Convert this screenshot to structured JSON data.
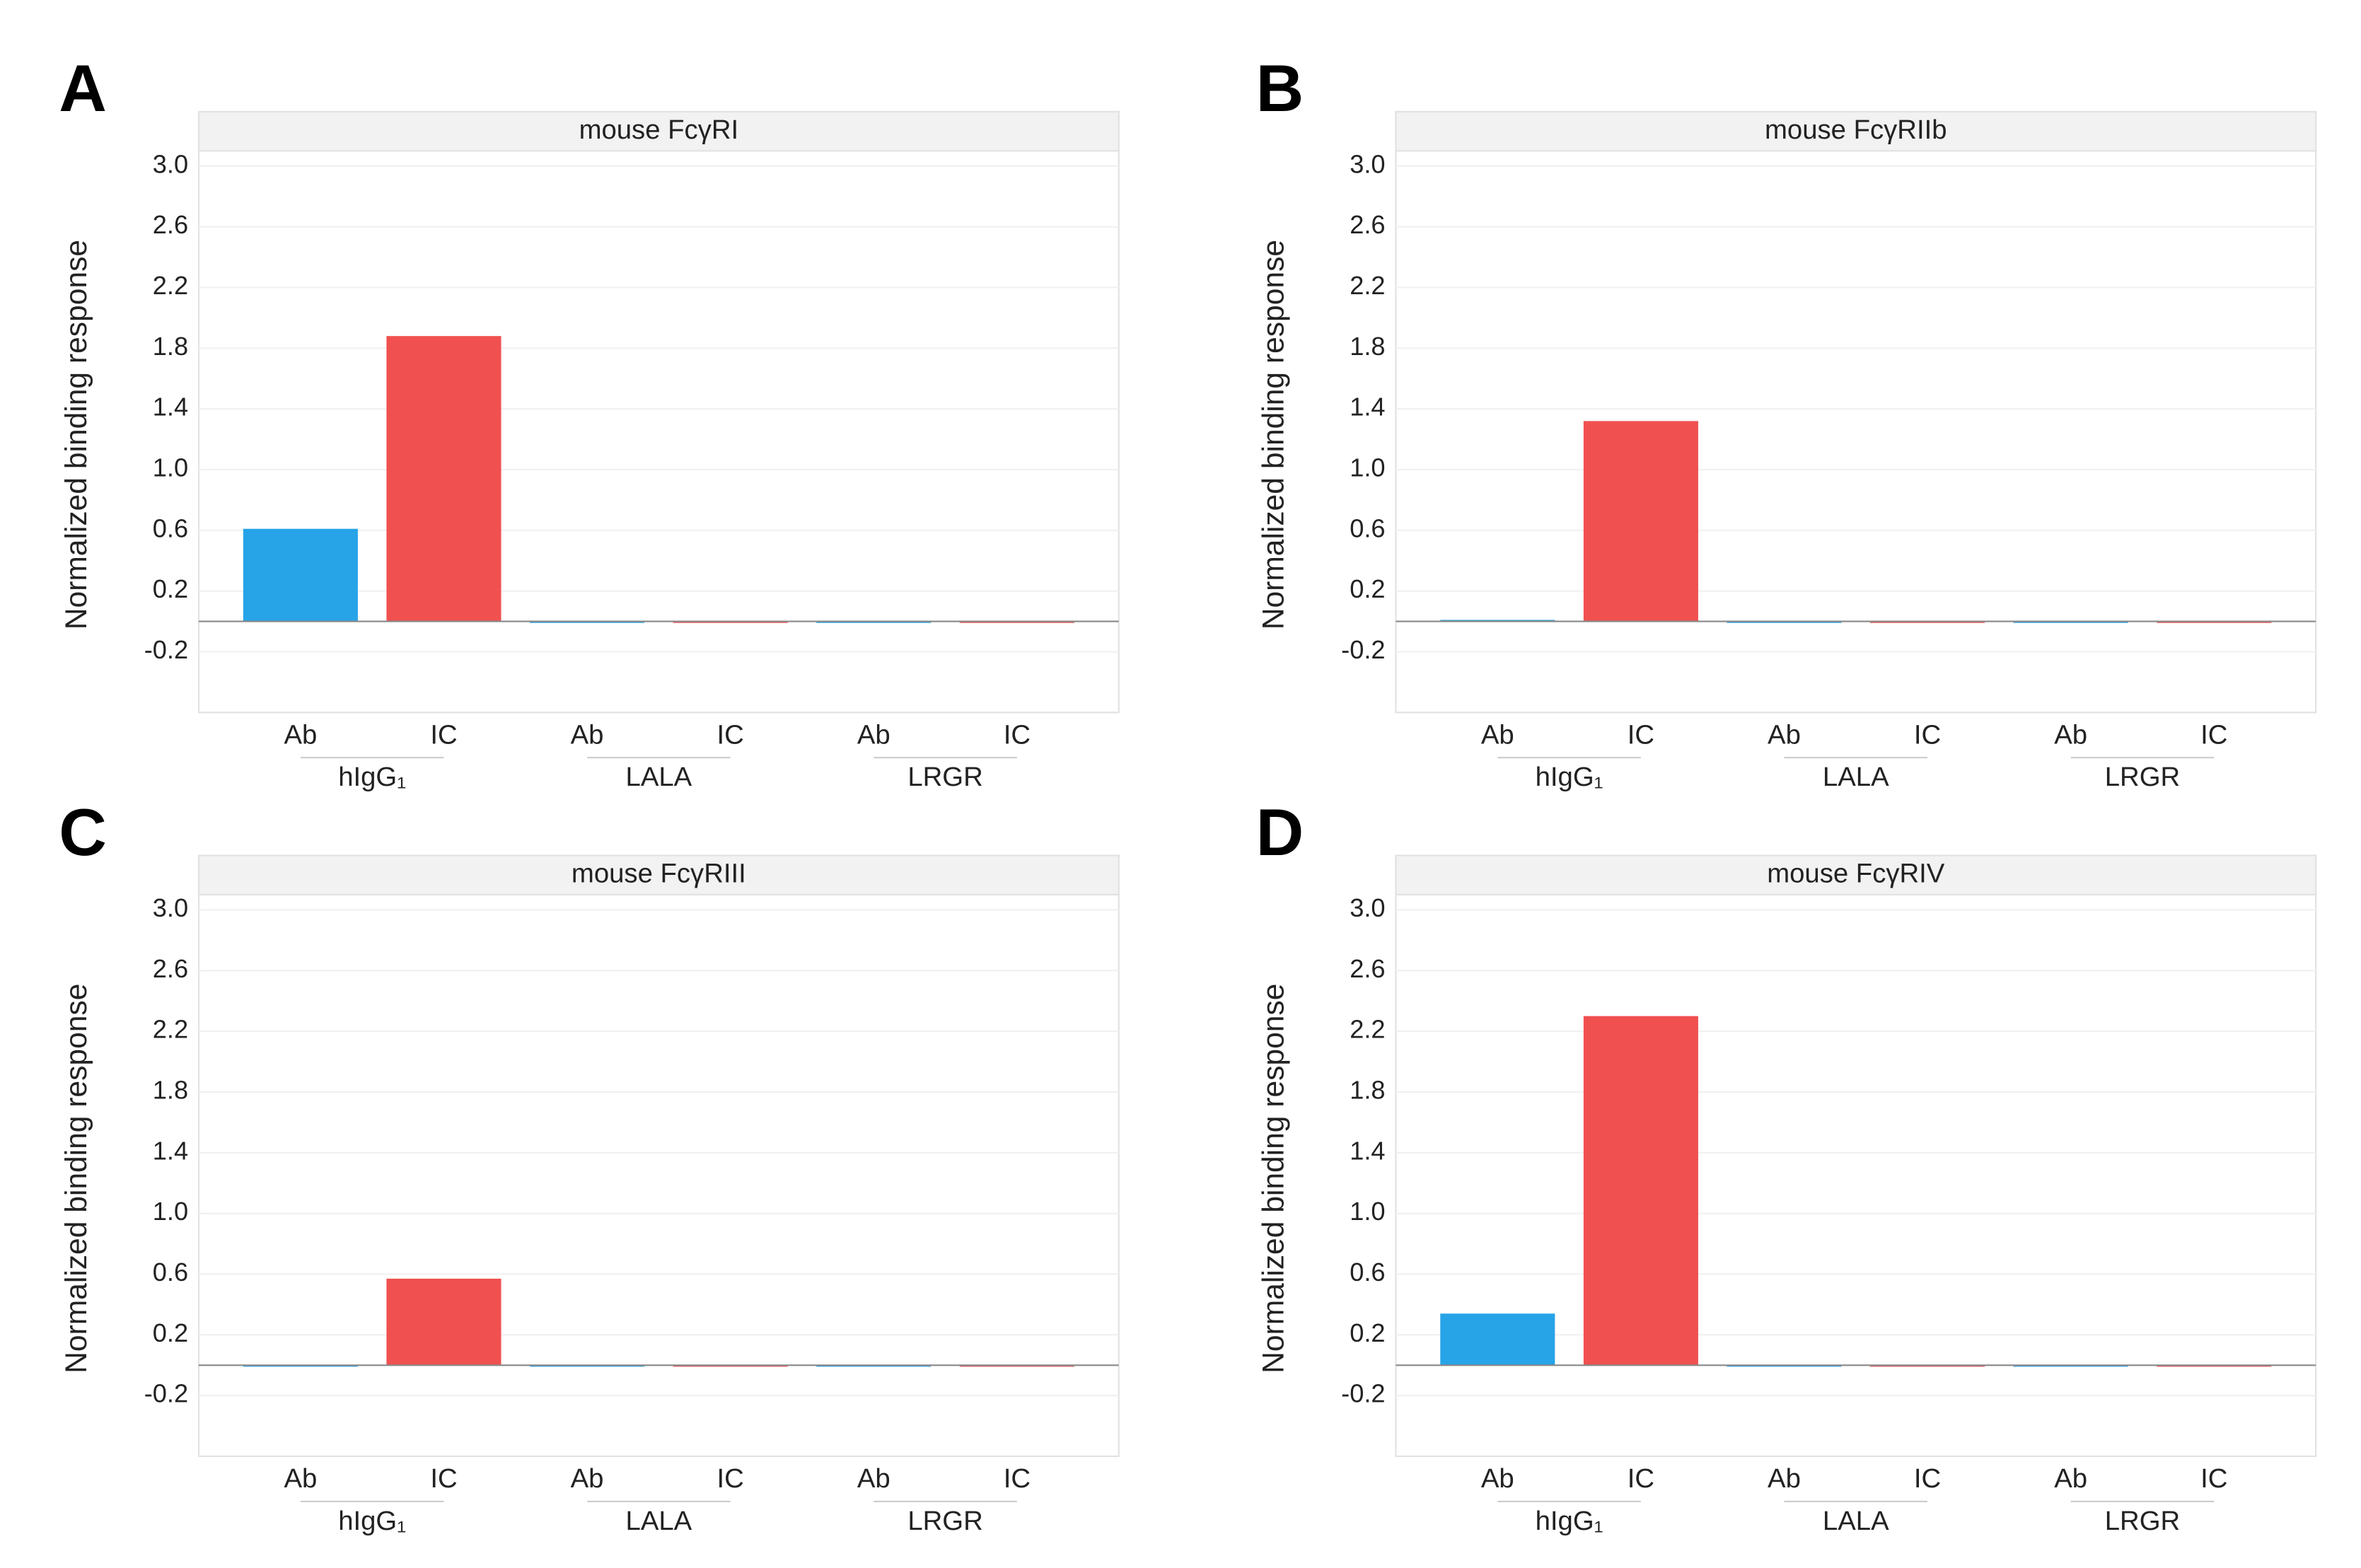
{
  "chart_data": [
    {
      "type": "bar",
      "panel": "A",
      "title": "mouse FcγRI",
      "y_label": "Normalized binding response",
      "categories": [
        "hIgG₁",
        "LALA",
        "LRGR"
      ],
      "series": [
        {
          "name": "Ab",
          "color": "#27a3e8",
          "values": [
            0.61,
            0.0,
            0.0
          ]
        },
        {
          "name": "IC",
          "color": "#f05050",
          "values": [
            1.88,
            0.0,
            0.0
          ]
        }
      ],
      "ylim": [
        -0.6,
        3.1
      ],
      "yticks": [
        {
          "value": 3,
          "label": "3.0"
        },
        2.6,
        2.2,
        1.8,
        1.4,
        {
          "value": 1,
          "label": "1.0"
        },
        0.6,
        0.2,
        -0.2
      ],
      "grid": true
    },
    {
      "type": "bar",
      "panel": "B",
      "title": "mouse FcγRIIb",
      "y_label": "Normalized binding response",
      "categories": [
        "hIgG₁",
        "LALA",
        "LRGR"
      ],
      "series": [
        {
          "name": "Ab",
          "color": "#27a3e8",
          "values": [
            0.01,
            0.0,
            0.0
          ]
        },
        {
          "name": "IC",
          "color": "#f05050",
          "values": [
            1.32,
            0.0,
            0.0
          ]
        }
      ],
      "ylim": [
        -0.6,
        3.1
      ],
      "yticks": [
        {
          "value": 3,
          "label": "3.0"
        },
        2.6,
        2.2,
        1.8,
        1.4,
        {
          "value": 1,
          "label": "1.0"
        },
        0.6,
        0.2,
        -0.2
      ],
      "grid": true
    },
    {
      "type": "bar",
      "panel": "C",
      "title": "mouse FcγRIII",
      "y_label": "Normalized binding response",
      "categories": [
        "hIgG₁",
        "LALA",
        "LRGR"
      ],
      "series": [
        {
          "name": "Ab",
          "color": "#27a3e8",
          "values": [
            0.0,
            0.0,
            0.0
          ]
        },
        {
          "name": "IC",
          "color": "#f05050",
          "values": [
            0.57,
            0.0,
            0.0
          ]
        }
      ],
      "ylim": [
        -0.6,
        3.1
      ],
      "yticks": [
        {
          "value": 3,
          "label": "3.0"
        },
        2.6,
        2.2,
        1.8,
        1.4,
        {
          "value": 1,
          "label": "1.0"
        },
        0.6,
        0.2,
        -0.2
      ],
      "grid": true
    },
    {
      "type": "bar",
      "panel": "D",
      "title": "mouse FcγRIV",
      "y_label": "Normalized binding response",
      "categories": [
        "hIgG₁",
        "LALA",
        "LRGR"
      ],
      "series": [
        {
          "name": "Ab",
          "color": "#27a3e8",
          "values": [
            0.34,
            0.0,
            0.0
          ]
        },
        {
          "name": "IC",
          "color": "#f05050",
          "values": [
            2.3,
            0.0,
            0.0
          ]
        }
      ],
      "ylim": [
        -0.6,
        3.1
      ],
      "yticks": [
        {
          "value": 3,
          "label": "3.0"
        },
        2.6,
        2.2,
        1.8,
        1.4,
        {
          "value": 1,
          "label": "1.0"
        },
        0.6,
        0.2,
        -0.2
      ],
      "grid": true
    }
  ]
}
